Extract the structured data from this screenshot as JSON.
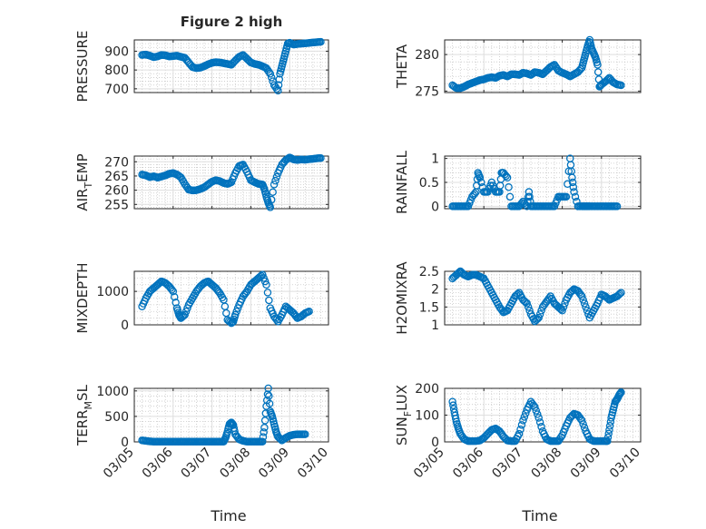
{
  "chart_data": [
    {
      "type": "scatter",
      "name": "PRESSURE",
      "title": "Figure 2 high",
      "ylabel": "PRESSURE",
      "xlabel": "",
      "ylim": [
        680,
        960
      ],
      "yticks": [
        700,
        800,
        900
      ],
      "xlim": [
        0,
        5
      ],
      "xticklabels": [],
      "grid": "major+minor",
      "marker": "o",
      "color": "#0072bd",
      "series": [
        {
          "x": [
            0.2,
            0.3,
            0.4,
            0.5,
            0.6,
            0.7,
            0.8,
            0.9,
            1.0,
            1.1,
            1.2,
            1.3,
            1.4,
            1.5,
            1.6,
            1.7,
            1.8,
            1.9,
            2.0,
            2.1,
            2.2,
            2.3,
            2.4,
            2.5,
            2.6,
            2.7,
            2.8,
            2.9,
            3.0,
            3.1,
            3.2,
            3.3,
            3.4,
            3.5,
            3.6,
            3.7,
            3.75,
            3.8,
            3.85,
            3.9,
            3.95,
            4.0,
            4.1,
            4.2,
            4.3,
            4.4,
            4.5,
            4.6,
            4.7,
            4.8
          ],
          "y": [
            880,
            882,
            876,
            868,
            872,
            880,
            878,
            872,
            874,
            876,
            870,
            865,
            840,
            815,
            810,
            812,
            820,
            830,
            838,
            842,
            840,
            836,
            832,
            828,
            850,
            870,
            880,
            860,
            840,
            832,
            828,
            820,
            810,
            780,
            720,
            690,
            780,
            820,
            860,
            900,
            940,
            945,
            935,
            938,
            940,
            942,
            944,
            946,
            948,
            950
          ]
        }
      ]
    },
    {
      "type": "scatter",
      "name": "THETA",
      "ylabel": "THETA",
      "xlabel": "",
      "ylim": [
        274.8,
        282
      ],
      "yticks": [
        275,
        280
      ],
      "xlim": [
        0,
        5
      ],
      "xticklabels": [],
      "grid": "major+minor",
      "marker": "o",
      "color": "#0072bd",
      "series": [
        {
          "x": [
            0.2,
            0.3,
            0.4,
            0.5,
            0.6,
            0.7,
            0.8,
            0.9,
            1.0,
            1.1,
            1.2,
            1.3,
            1.4,
            1.5,
            1.6,
            1.7,
            1.8,
            1.9,
            2.0,
            2.1,
            2.2,
            2.3,
            2.4,
            2.5,
            2.6,
            2.7,
            2.8,
            2.9,
            3.0,
            3.1,
            3.2,
            3.3,
            3.4,
            3.5,
            3.55,
            3.6,
            3.65,
            3.7,
            3.75,
            3.8,
            3.85,
            3.9,
            3.95,
            4.0,
            4.1,
            4.2,
            4.3,
            4.4,
            4.5
          ],
          "y": [
            275.8,
            275.4,
            275.4,
            275.6,
            275.9,
            276.1,
            276.3,
            276.5,
            276.6,
            276.8,
            276.9,
            276.8,
            277.1,
            277.2,
            277.0,
            277.3,
            277.3,
            277.2,
            277.5,
            277.4,
            277.2,
            277.6,
            277.5,
            277.3,
            277.8,
            278.3,
            278.6,
            277.8,
            277.5,
            277.3,
            277.0,
            277.3,
            277.6,
            278.2,
            279.2,
            280.2,
            281.2,
            282.0,
            280.8,
            280.2,
            279.6,
            278.6,
            275.6,
            275.9,
            276.3,
            276.8,
            276.2,
            275.9,
            275.8
          ]
        }
      ]
    },
    {
      "type": "scatter",
      "name": "AIR_TEMP",
      "ylabel": "AIR",
      "ylabel_sub": "T",
      "ylabel_rest": "EMP",
      "xlabel": "",
      "ylim": [
        253.5,
        272
      ],
      "yticks": [
        255,
        260,
        265,
        270
      ],
      "xlim": [
        0,
        5
      ],
      "xticklabels": [],
      "grid": "major+minor",
      "marker": "o",
      "color": "#0072bd",
      "series": [
        {
          "x": [
            0.2,
            0.3,
            0.4,
            0.5,
            0.6,
            0.7,
            0.8,
            0.9,
            1.0,
            1.1,
            1.2,
            1.3,
            1.4,
            1.5,
            1.6,
            1.7,
            1.8,
            1.9,
            2.0,
            2.1,
            2.2,
            2.3,
            2.4,
            2.5,
            2.6,
            2.7,
            2.8,
            2.9,
            3.0,
            3.1,
            3.2,
            3.3,
            3.35,
            3.4,
            3.45,
            3.5,
            3.6,
            3.7,
            3.8,
            3.9,
            4.0,
            4.1,
            4.2,
            4.3,
            4.4,
            4.5,
            4.6,
            4.7,
            4.8
          ],
          "y": [
            265.5,
            265.2,
            264.6,
            264.9,
            264.4,
            264.8,
            265.2,
            265.8,
            266.0,
            265.5,
            264.5,
            262.2,
            260.2,
            259.9,
            260.0,
            260.4,
            261.0,
            262.0,
            263.0,
            263.5,
            263.2,
            262.5,
            262.2,
            262.8,
            266.0,
            268.5,
            269.0,
            266.5,
            263.5,
            262.8,
            262.2,
            262.0,
            260.4,
            257.8,
            255.6,
            254.0,
            262.0,
            266.0,
            269.0,
            270.6,
            271.5,
            270.8,
            270.6,
            270.8,
            270.7,
            270.9,
            271.0,
            271.2,
            271.3
          ]
        }
      ]
    },
    {
      "type": "scatter",
      "name": "RAINFALL",
      "ylabel": "RAINFALL",
      "xlabel": "",
      "ylim": [
        -0.05,
        1.05
      ],
      "yticks": [
        0,
        0.5,
        1
      ],
      "xlim": [
        0,
        5
      ],
      "xticklabels": [],
      "grid": "major+minor",
      "marker": "o",
      "color": "#0072bd",
      "series": [
        {
          "x": [
            0.2,
            0.3,
            0.4,
            0.5,
            0.6,
            0.7,
            0.8,
            0.85,
            0.9,
            1.0,
            1.1,
            1.2,
            1.3,
            1.4,
            1.45,
            1.5,
            1.6,
            1.7,
            1.8,
            1.9,
            2.0,
            2.1,
            2.15,
            2.2,
            2.3,
            2.4,
            2.5,
            2.6,
            2.7,
            2.8,
            2.9,
            3.0,
            3.1,
            3.2,
            3.25,
            3.3,
            3.4,
            3.5,
            3.55,
            3.6,
            3.65,
            3.7,
            3.8,
            3.9,
            4.0,
            4.1,
            4.2,
            4.3,
            4.4
          ],
          "y": [
            0,
            0,
            0,
            0,
            0,
            0.2,
            0.3,
            0.7,
            0.6,
            0.3,
            0.3,
            0.5,
            0.3,
            0.3,
            0.7,
            0.7,
            0.6,
            0,
            0,
            0,
            0.1,
            0,
            0.3,
            0,
            0,
            0,
            0,
            0,
            0,
            0,
            0.2,
            0.2,
            0.2,
            1.0,
            0.6,
            0.3,
            0,
            0,
            0,
            0,
            0,
            0,
            0,
            0,
            0,
            0,
            0,
            0,
            0
          ]
        }
      ]
    },
    {
      "type": "scatter",
      "name": "MIXDEPTH",
      "ylabel": "MIXDEPTH",
      "xlabel": "",
      "ylim": [
        0,
        1600
      ],
      "yticks": [
        0,
        1000
      ],
      "xlim": [
        0,
        5
      ],
      "xticklabels": [],
      "grid": "major+minor",
      "marker": "o",
      "color": "#0072bd",
      "series": [
        {
          "x": [
            0.2,
            0.3,
            0.4,
            0.5,
            0.6,
            0.7,
            0.8,
            0.9,
            1.0,
            1.1,
            1.15,
            1.2,
            1.3,
            1.4,
            1.5,
            1.6,
            1.7,
            1.8,
            1.9,
            2.0,
            2.1,
            2.2,
            2.3,
            2.4,
            2.5,
            2.55,
            2.6,
            2.7,
            2.8,
            2.9,
            3.0,
            3.1,
            3.2,
            3.3,
            3.4,
            3.5,
            3.6,
            3.7,
            3.8,
            3.9,
            4.0,
            4.1,
            4.2,
            4.3,
            4.4,
            4.5
          ],
          "y": [
            550,
            800,
            1000,
            1100,
            1200,
            1300,
            1250,
            1150,
            1000,
            500,
            300,
            200,
            300,
            600,
            800,
            1000,
            1150,
            1250,
            1300,
            1200,
            1100,
            950,
            750,
            150,
            50,
            100,
            300,
            600,
            850,
            1000,
            1200,
            1300,
            1400,
            1500,
            1200,
            500,
            250,
            100,
            300,
            550,
            450,
            350,
            200,
            250,
            350,
            400
          ]
        }
      ]
    },
    {
      "type": "scatter",
      "name": "H2OMIXRA",
      "ylabel": "H2OMIXRA",
      "xlabel": "",
      "ylim": [
        1,
        2.5
      ],
      "yticks": [
        1,
        1.5,
        2,
        2.5
      ],
      "xlim": [
        0,
        5
      ],
      "xticklabels": [],
      "grid": "major+minor",
      "marker": "o",
      "color": "#0072bd",
      "series": [
        {
          "x": [
            0.2,
            0.3,
            0.4,
            0.5,
            0.6,
            0.7,
            0.8,
            0.9,
            1.0,
            1.1,
            1.2,
            1.3,
            1.4,
            1.5,
            1.6,
            1.7,
            1.8,
            1.9,
            2.0,
            2.1,
            2.2,
            2.3,
            2.4,
            2.5,
            2.6,
            2.7,
            2.8,
            2.9,
            3.0,
            3.1,
            3.2,
            3.3,
            3.4,
            3.5,
            3.6,
            3.7,
            3.8,
            3.9,
            4.0,
            4.1,
            4.2,
            4.3,
            4.4,
            4.5
          ],
          "y": [
            2.3,
            2.4,
            2.5,
            2.4,
            2.35,
            2.4,
            2.4,
            2.35,
            2.3,
            2.1,
            1.9,
            1.7,
            1.5,
            1.35,
            1.4,
            1.6,
            1.8,
            1.9,
            1.7,
            1.6,
            1.3,
            1.1,
            1.2,
            1.5,
            1.65,
            1.8,
            1.6,
            1.5,
            1.4,
            1.7,
            1.9,
            2.0,
            1.95,
            1.8,
            1.5,
            1.2,
            1.4,
            1.6,
            1.85,
            1.8,
            1.7,
            1.75,
            1.8,
            1.9
          ]
        }
      ]
    },
    {
      "type": "scatter",
      "name": "TERR_MSL",
      "ylabel": "TERR",
      "ylabel_sub": "M",
      "ylabel_rest": "SL",
      "xlabel": "Time",
      "ylim": [
        0,
        1050
      ],
      "yticks": [
        0,
        500,
        1000
      ],
      "xlim": [
        0,
        5
      ],
      "xticklabels": [
        "03/05",
        "03/06",
        "03/07",
        "03/08",
        "03/09",
        "03/10"
      ],
      "grid": "major+minor",
      "marker": "o",
      "color": "#0072bd",
      "series": [
        {
          "x": [
            0.2,
            0.3,
            0.4,
            0.5,
            0.6,
            0.7,
            0.8,
            0.9,
            1.0,
            1.1,
            1.2,
            1.3,
            1.4,
            1.5,
            1.6,
            1.7,
            1.8,
            1.9,
            2.0,
            2.1,
            2.2,
            2.3,
            2.35,
            2.4,
            2.45,
            2.5,
            2.55,
            2.6,
            2.7,
            2.8,
            2.9,
            3.0,
            3.1,
            3.2,
            3.3,
            3.35,
            3.4,
            3.45,
            3.5,
            3.55,
            3.6,
            3.65,
            3.7,
            3.8,
            3.9,
            4.0,
            4.1,
            4.2,
            4.3,
            4.4
          ],
          "y": [
            30,
            20,
            10,
            5,
            5,
            5,
            5,
            5,
            5,
            5,
            5,
            5,
            5,
            5,
            5,
            5,
            5,
            5,
            5,
            5,
            5,
            5,
            80,
            200,
            350,
            380,
            330,
            150,
            50,
            20,
            5,
            5,
            5,
            5,
            5,
            280,
            700,
            1050,
            600,
            500,
            350,
            200,
            100,
            30,
            80,
            120,
            140,
            150,
            150,
            150
          ]
        }
      ]
    },
    {
      "type": "scatter",
      "name": "SUN_FLUX",
      "ylabel": "SUN",
      "ylabel_sub": "F",
      "ylabel_rest": "LUX",
      "xlabel": "Time",
      "ylim": [
        0,
        200
      ],
      "yticks": [
        0,
        100,
        200
      ],
      "xlim": [
        0,
        5
      ],
      "xticklabels": [
        "03/05",
        "03/06",
        "03/07",
        "03/08",
        "03/09",
        "03/10"
      ],
      "grid": "major+minor",
      "marker": "o",
      "color": "#0072bd",
      "series": [
        {
          "x": [
            0.2,
            0.25,
            0.3,
            0.35,
            0.4,
            0.5,
            0.6,
            0.7,
            0.8,
            0.9,
            1.0,
            1.1,
            1.2,
            1.3,
            1.4,
            1.5,
            1.6,
            1.7,
            1.8,
            1.9,
            2.0,
            2.1,
            2.2,
            2.3,
            2.4,
            2.5,
            2.6,
            2.7,
            2.8,
            2.9,
            3.0,
            3.1,
            3.2,
            3.3,
            3.4,
            3.5,
            3.6,
            3.7,
            3.8,
            3.9,
            4.0,
            4.1,
            4.15,
            4.2,
            4.25,
            4.3,
            4.35,
            4.4,
            4.45,
            4.5
          ],
          "y": [
            150,
            110,
            75,
            50,
            30,
            10,
            3,
            3,
            3,
            5,
            15,
            30,
            45,
            50,
            40,
            20,
            5,
            3,
            3,
            30,
            80,
            120,
            150,
            130,
            90,
            40,
            10,
            3,
            3,
            3,
            25,
            60,
            90,
            105,
            100,
            80,
            40,
            10,
            3,
            3,
            3,
            3,
            3,
            45,
            90,
            120,
            150,
            160,
            175,
            185
          ]
        }
      ]
    }
  ]
}
